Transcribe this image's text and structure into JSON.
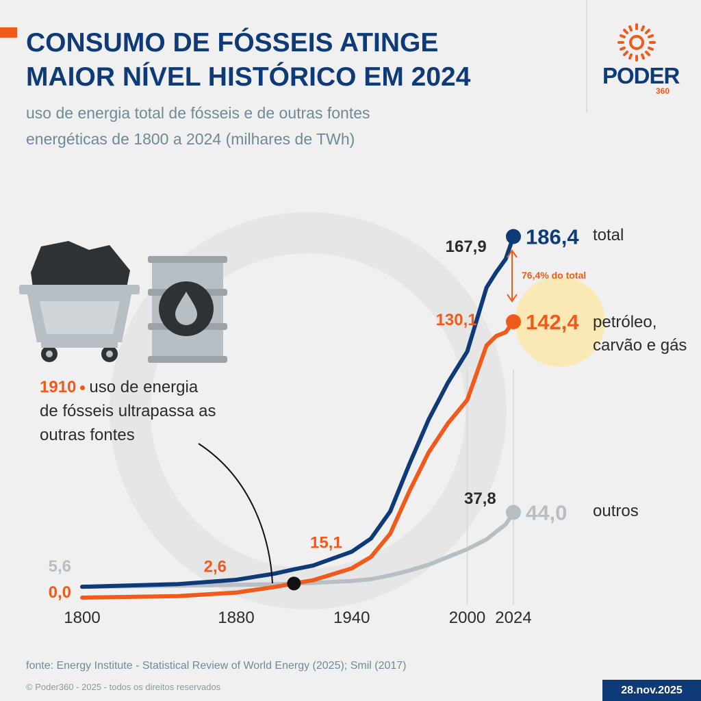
{
  "chart_data": {
    "type": "line",
    "title": [
      "CONSUMO DE FÓSSEIS ATINGE",
      "MAIOR NÍVEL HISTÓRICO EM 2024"
    ],
    "subtitle": [
      "uso de energia total de fósseis e de outras fontes",
      "energéticas de 1800 a 2024 (milhares de TWh)"
    ],
    "x": [
      1800,
      1850,
      1880,
      1900,
      1910,
      1920,
      1940,
      1950,
      1960,
      1970,
      1980,
      1990,
      2000,
      2010,
      2015,
      2020,
      2024
    ],
    "xlim": [
      1800,
      2024
    ],
    "xticks": [
      1800,
      1880,
      1940,
      2000,
      2024
    ],
    "ylim": [
      0,
      200
    ],
    "grid_x": [
      2000,
      2024
    ],
    "series": [
      {
        "name": "total",
        "color": "#0e3b78",
        "values": [
          5.6,
          7.0,
          9.2,
          12.4,
          14.6,
          16.6,
          23.7,
          30.5,
          44.5,
          69,
          92,
          111,
          127,
          160,
          167.9,
          174.8,
          186.4
        ],
        "value_labels": [
          null,
          null,
          null,
          null,
          null,
          null,
          null,
          null,
          null,
          null,
          null,
          null,
          null,
          null,
          "167,9",
          null,
          "186,4"
        ]
      },
      {
        "name": "petróleo, carvão e gás",
        "color": "#f05a1a",
        "values": [
          0.0,
          0.8,
          2.6,
          5.5,
          7.3,
          9,
          15.1,
          21,
          33,
          55,
          75,
          90,
          102,
          130.1,
          135,
          137,
          142.4
        ],
        "value_labels": [
          "0,0",
          null,
          "2,6",
          null,
          null,
          null,
          "15,1",
          null,
          null,
          null,
          null,
          null,
          null,
          "130,1",
          null,
          null,
          "142,4"
        ]
      },
      {
        "name": "outros",
        "color": "#b7bfc4",
        "values": [
          5.6,
          6.2,
          6.6,
          6.9,
          7.3,
          7.6,
          8.6,
          9.5,
          11.5,
          14,
          17,
          21,
          25,
          30,
          34,
          37.8,
          44.0
        ],
        "value_labels": [
          "5,6",
          null,
          null,
          null,
          null,
          null,
          null,
          null,
          null,
          null,
          null,
          null,
          null,
          null,
          null,
          "37,8",
          "44,0"
        ]
      }
    ],
    "annotation": {
      "year": "1910",
      "text": "uso de energia de fósseis ultrapassa as outras fontes"
    },
    "share_note": "76,4% do total"
  },
  "brand": {
    "name": "PODER",
    "suffix": "360"
  },
  "footer": {
    "source": "fonte: Energy Institute - Statistical Review of World Energy (2025); Smil (2017)",
    "copyright": "© Poder360 - 2025 - todos os direitos reservados",
    "date": "28.nov.2025"
  }
}
